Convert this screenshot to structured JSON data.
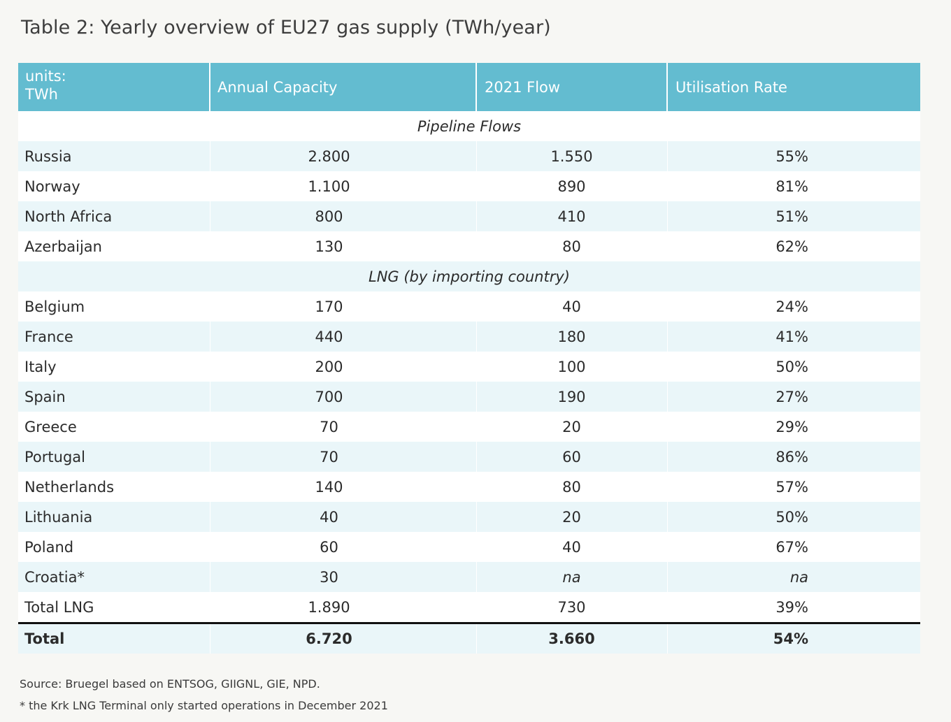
{
  "title": "Table 2: Yearly overview of EU27 gas supply (TWh/year)",
  "colors": {
    "header_bg": "#63bcd0",
    "band_blue": "#eaf6f9",
    "band_white": "#ffffff",
    "page_bg": "#f7f7f4",
    "total_rule": "#111111"
  },
  "header": {
    "units_line1": "units:",
    "units_line2": "TWh",
    "col_capacity": "Annual Capacity",
    "col_flow": "2021 Flow",
    "col_util": "Utilisation Rate"
  },
  "sections": [
    {
      "title": "Pipeline Flows",
      "rows": [
        {
          "name": "Russia",
          "capacity": "2.800",
          "flow": "1.550",
          "util": "55%"
        },
        {
          "name": "Norway",
          "capacity": "1.100",
          "flow": "890",
          "util": "81%"
        },
        {
          "name": "North Africa",
          "capacity": "800",
          "flow": "410",
          "util": "51%"
        },
        {
          "name": "Azerbaijan",
          "capacity": "130",
          "flow": "80",
          "util": "62%"
        }
      ]
    },
    {
      "title": "LNG (by importing country)",
      "rows": [
        {
          "name": "Belgium",
          "capacity": "170",
          "flow": "40",
          "util": "24%"
        },
        {
          "name": "France",
          "capacity": "440",
          "flow": "180",
          "util": "41%"
        },
        {
          "name": "Italy",
          "capacity": "200",
          "flow": "100",
          "util": "50%"
        },
        {
          "name": "Spain",
          "capacity": "700",
          "flow": "190",
          "util": "27%"
        },
        {
          "name": "Greece",
          "capacity": "70",
          "flow": "20",
          "util": "29%"
        },
        {
          "name": "Portugal",
          "capacity": "70",
          "flow": "60",
          "util": "86%"
        },
        {
          "name": "Netherlands",
          "capacity": "140",
          "flow": "80",
          "util": "57%"
        },
        {
          "name": "Lithuania",
          "capacity": "40",
          "flow": "20",
          "util": "50%"
        },
        {
          "name": "Poland",
          "capacity": "60",
          "flow": "40",
          "util": "67%"
        },
        {
          "name": "Croatia*",
          "capacity": "30",
          "flow": "na",
          "util": "na"
        },
        {
          "name": "Total LNG",
          "capacity": "1.890",
          "flow": "730",
          "util": "39%"
        }
      ]
    }
  ],
  "total": {
    "name": "Total",
    "capacity": "6.720",
    "flow": "3.660",
    "util": "54%"
  },
  "source": "Source: Bruegel based on ENTSOG, GIIGNL, GIE, NPD.",
  "footnote": "* the Krk LNG Terminal only started operations in December 2021"
}
